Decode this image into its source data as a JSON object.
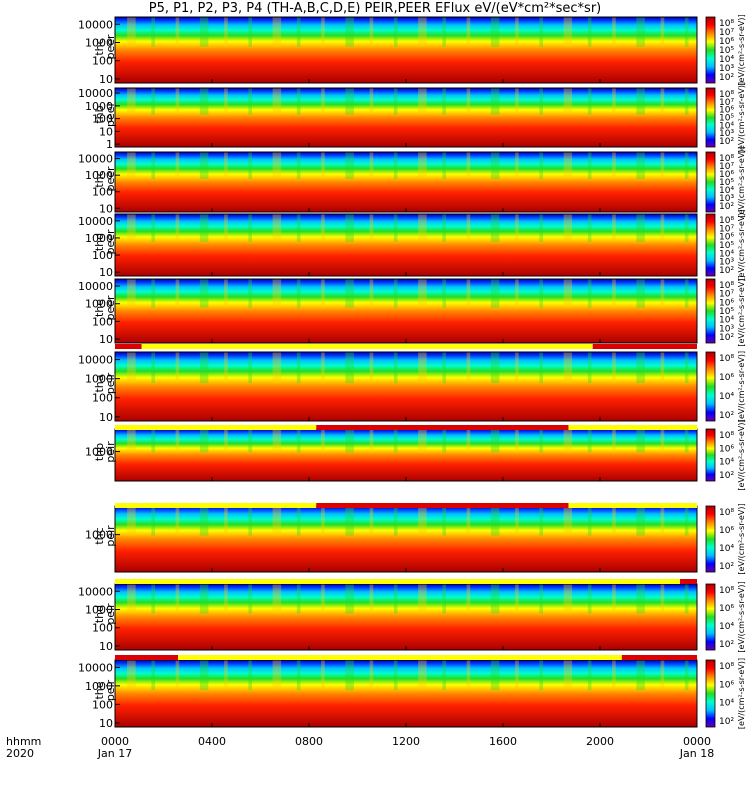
{
  "title": "P5, P1, P2, P3, P4 (TH-A,B,C,D,E) PEIR,PEER EFlux eV/(eV*cm²*sec*sr)",
  "colors": {
    "bar_red": "#dd0000",
    "bar_yellow": "#ffff00",
    "colorscale": [
      "#6a00a8",
      "#0000ff",
      "#00bfff",
      "#00ffcc",
      "#22dd22",
      "#ffff00",
      "#ff8800",
      "#ff0000",
      "#aa0000"
    ]
  },
  "colorbar": {
    "ticks_peer": [
      "10⁸",
      "10⁷",
      "10⁶",
      "10⁵",
      "10⁴",
      "10³",
      "10²"
    ],
    "ticks_peir": [
      "10⁸",
      "10⁶",
      "10⁴",
      "10²"
    ],
    "label": "[eV/(cm²-s-sr-eV)]"
  },
  "chart_data": {
    "type": "heatmap",
    "x": {
      "ticks": [
        "0000",
        "0400",
        "0800",
        "1200",
        "1600",
        "2000",
        "0000"
      ],
      "dates": [
        "Jan 17",
        "Jan 18"
      ],
      "row_label_1": "hhmm",
      "row_label_2": "2020",
      "range_hours": [
        0,
        24
      ]
    },
    "panels": [
      {
        "name": "thc peer",
        "ylabel": [
          "thc",
          "peer"
        ],
        "yticks": [
          "10000",
          "1000",
          "100",
          "10"
        ],
        "ylim": [
          6,
          25000
        ],
        "log": true
      },
      {
        "name": "thb peer",
        "ylabel": [
          "thb",
          "peer"
        ],
        "yticks": [
          "10000",
          "1000",
          "100",
          "10",
          "1"
        ],
        "ylim": [
          0.6,
          25000
        ],
        "log": true
      },
      {
        "name": "thc peer",
        "ylabel": [
          "thc",
          "peer"
        ],
        "yticks": [
          "10000",
          "1000",
          "100",
          "10"
        ],
        "ylim": [
          6,
          25000
        ],
        "log": true
      },
      {
        "name": "thd peer",
        "ylabel": [
          "thd",
          "peer"
        ],
        "yticks": [
          "10000",
          "1000",
          "100",
          "10"
        ],
        "ylim": [
          6,
          25000
        ],
        "log": true
      },
      {
        "name": "the peer",
        "ylabel": [
          "the",
          "peer"
        ],
        "yticks": [
          "10000",
          "1000",
          "100",
          "10"
        ],
        "ylim": [
          6,
          25000
        ],
        "log": true
      },
      {
        "name": "tha peir",
        "ylabel": [
          "tha",
          "peir"
        ],
        "yticks": [
          "10000",
          "1000",
          "100",
          "10"
        ],
        "ylim": [
          6,
          25000
        ],
        "log": true
      },
      {
        "name": "thb peir",
        "ylabel": [
          "thb",
          "peir"
        ],
        "yticks": [
          "1000"
        ],
        "ylim": [
          15,
          25000
        ],
        "log": true
      },
      {
        "name": "thc peir",
        "ylabel": [
          "thc",
          "peir"
        ],
        "yticks": [
          "1000"
        ],
        "ylim": [
          15,
          25000
        ],
        "log": true
      },
      {
        "name": "thd peir",
        "ylabel": [
          "thd",
          "peir"
        ],
        "yticks": [
          "10000",
          "1000",
          "100",
          "10"
        ],
        "ylim": [
          6,
          25000
        ],
        "log": true
      },
      {
        "name": "the peir",
        "ylabel": [
          "the",
          "peir"
        ],
        "yticks": [
          "10000",
          "1000",
          "100",
          "10"
        ],
        "ylim": [
          6,
          25000
        ],
        "log": true
      }
    ],
    "status_bars": [
      {
        "after_panel": 5,
        "segments": [
          {
            "color": "red",
            "from": 0,
            "to": 1.1
          },
          {
            "color": "yellow",
            "from": 1.1,
            "to": 19.7
          },
          {
            "color": "red",
            "from": 19.7,
            "to": 24
          }
        ]
      },
      {
        "after_panel": 6,
        "segments": [
          {
            "color": "yellow",
            "from": 0,
            "to": 8.3
          },
          {
            "color": "red",
            "from": 8.3,
            "to": 18.7
          },
          {
            "color": "yellow",
            "from": 18.7,
            "to": 24
          }
        ]
      },
      {
        "after_panel": 7,
        "segments": [
          {
            "color": "yellow",
            "from": 0,
            "to": 8.3
          },
          {
            "color": "red",
            "from": 8.3,
            "to": 18.7
          },
          {
            "color": "yellow",
            "from": 18.7,
            "to": 24
          }
        ]
      },
      {
        "after_panel": 9,
        "segments": [
          {
            "color": "yellow",
            "from": 0,
            "to": 23.3
          },
          {
            "color": "red",
            "from": 23.3,
            "to": 24
          }
        ]
      },
      {
        "after_panel": 10,
        "segments": [
          {
            "color": "red",
            "from": 0,
            "to": 2.6
          },
          {
            "color": "yellow",
            "from": 2.6,
            "to": 20.9
          },
          {
            "color": "red",
            "from": 20.9,
            "to": 24
          }
        ]
      }
    ]
  }
}
